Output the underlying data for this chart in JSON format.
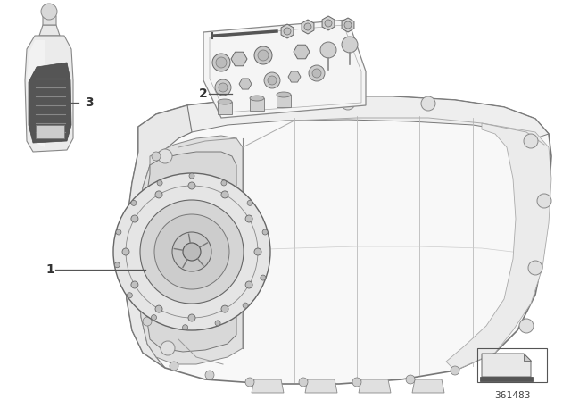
{
  "background_color": "#ffffff",
  "label_1": "1",
  "label_2": "2",
  "label_3": "3",
  "part_number": "361483",
  "line_color": "#888888",
  "dark_line": "#555555",
  "light_line": "#aaaaaa",
  "fill_light": "#f0f0f0",
  "fill_mid": "#d8d8d8",
  "fill_dark": "#999999",
  "label_font_size": 10,
  "part_num_font_size": 8,
  "fig_width": 6.4,
  "fig_height": 4.48,
  "dpi": 100
}
